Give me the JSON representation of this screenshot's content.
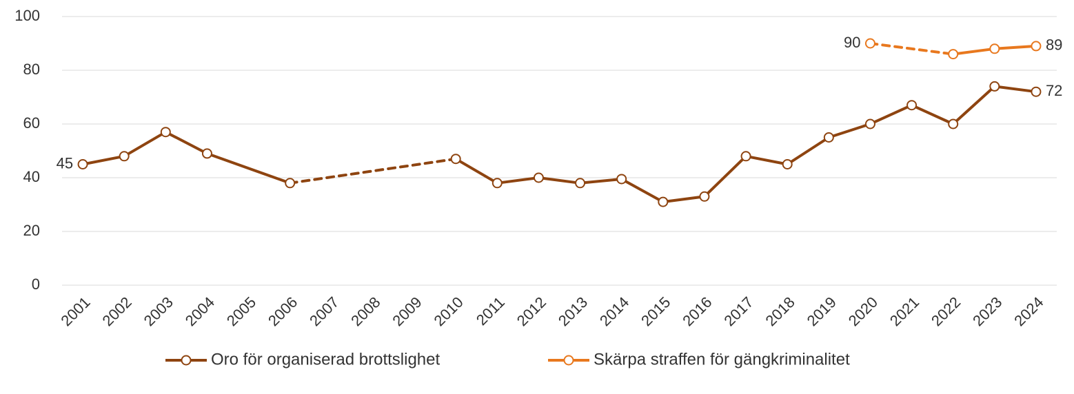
{
  "chart_data": {
    "type": "line",
    "categories": [
      "2001",
      "2002",
      "2003",
      "2004",
      "2005",
      "2006",
      "2007",
      "2008",
      "2009",
      "2010",
      "2011",
      "2012",
      "2013",
      "2014",
      "2015",
      "2016",
      "2017",
      "2018",
      "2019",
      "2020",
      "2021",
      "2022",
      "2023",
      "2024"
    ],
    "series": [
      {
        "name": "Oro för organiserad brottslighet",
        "color": "#8e4410",
        "values": [
          45,
          48,
          57,
          49,
          null,
          38,
          null,
          null,
          null,
          47,
          38,
          40,
          38,
          39.5,
          31,
          33,
          48,
          45,
          55,
          60,
          67,
          60,
          74,
          72
        ],
        "dashed_spans": [
          [
            "2006",
            "2010"
          ]
        ],
        "labels_at": [
          [
            "2001",
            "left"
          ],
          [
            "2024",
            "right"
          ]
        ]
      },
      {
        "name": "Skärpa straffen för gängkriminalitet",
        "color": "#e8781e",
        "values": [
          null,
          null,
          null,
          null,
          null,
          null,
          null,
          null,
          null,
          null,
          null,
          null,
          null,
          null,
          null,
          null,
          null,
          null,
          null,
          90,
          null,
          86,
          88,
          89
        ],
        "dashed_spans": [
          [
            "2020",
            "2022"
          ]
        ],
        "labels_at": [
          [
            "2020",
            "left"
          ],
          [
            "2024",
            "right"
          ]
        ]
      }
    ],
    "connect_gaps": true,
    "ylim": [
      0,
      100
    ],
    "yticks": [
      0,
      20,
      40,
      60,
      80,
      100
    ],
    "grid": true,
    "legend": "bottom"
  }
}
